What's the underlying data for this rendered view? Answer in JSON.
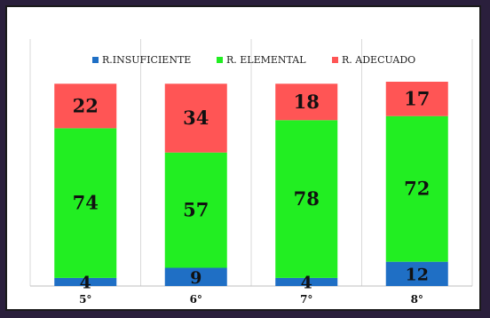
{
  "chart_data": {
    "type": "bar",
    "stacked": true,
    "categories": [
      "5°",
      "6°",
      "7°",
      "8°"
    ],
    "series": [
      {
        "name": "R.INSUFICIENTE",
        "color": "#1f6fc5",
        "values": [
          4,
          9,
          4,
          12
        ]
      },
      {
        "name": "R. ELEMENTAL",
        "color": "#22ee22",
        "values": [
          74,
          57,
          78,
          72
        ]
      },
      {
        "name": "R. ADECUADO",
        "color": "#ff5555",
        "values": [
          22,
          34,
          18,
          17
        ]
      }
    ],
    "ylim": [
      0,
      100
    ],
    "legend_position": "top",
    "grid": true,
    "data_labels": true
  }
}
